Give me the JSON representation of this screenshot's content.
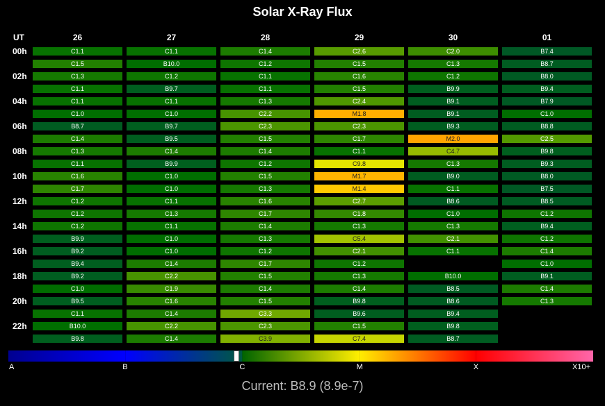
{
  "chart_data": {
    "type": "heatmap",
    "title": "Solar X-Ray Flux",
    "corner_label": "UT",
    "columns": [
      "26",
      "27",
      "28",
      "29",
      "30",
      "01"
    ],
    "row_labels": [
      "00h",
      "02h",
      "04h",
      "06h",
      "08h",
      "10h",
      "12h",
      "14h",
      "16h",
      "18h",
      "20h",
      "22h"
    ],
    "rows_per_day": 24,
    "cells": [
      [
        "C1.1",
        "C1.5",
        "C1.3",
        "C1.1",
        "C1.1",
        "C1.0",
        "B8.7",
        "C1.4",
        "C1.3",
        "C1.1",
        "C1.6",
        "C1.7",
        "C1.2",
        "C1.2",
        "C1.2",
        "B9.9",
        "B9.2",
        "B9.4",
        "B9.2",
        "C1.0",
        "B9.5",
        "C1.1",
        "B10.0",
        "B9.8"
      ],
      [
        "C1.1",
        "B10.0",
        "C1.2",
        "B9.7",
        "C1.1",
        "C1.0",
        "B9.7",
        "B9.5",
        "C1.4",
        "B9.9",
        "C1.0",
        "C1.0",
        "C1.1",
        "C1.3",
        "C1.1",
        "C1.0",
        "C1.0",
        "C1.4",
        "C2.2",
        "C1.9",
        "C1.6",
        "C1.4",
        "C2.2",
        "C1.4"
      ],
      [
        "C1.4",
        "C1.2",
        "C1.1",
        "C1.1",
        "C1.3",
        "C2.2",
        "C2.3",
        "C1.5",
        "C1.4",
        "C1.2",
        "C1.5",
        "C1.3",
        "C1.6",
        "C1.7",
        "C1.4",
        "C1.3",
        "C1.2",
        "C1.7",
        "C1.5",
        "C1.4",
        "C1.5",
        "C3.3",
        "C2.3",
        "C3.9"
      ],
      [
        "C2.6",
        "C1.5",
        "C1.6",
        "C1.5",
        "C2.4",
        "M1.8",
        "C2.3",
        "C1.7",
        "C1.1",
        "C9.8",
        "M1.7",
        "M1.4",
        "C2.7",
        "C1.8",
        "C1.3",
        "C5.4",
        "C2.1",
        "C1.2",
        "C1.3",
        "C1.4",
        "B9.8",
        "B9.6",
        "C1.5",
        "C7.4"
      ],
      [
        "C2.0",
        "C1.3",
        "C1.2",
        "B9.9",
        "B9.1",
        "B9.1",
        "B9.3",
        "M2.0",
        "C4.7",
        "C1.3",
        "B9.0",
        "C1.1",
        "B8.6",
        "C1.0",
        "C1.3",
        "C2.1",
        "C1.1",
        null,
        "B10.0",
        "B8.5",
        "B8.6",
        "B9.4",
        "B9.8",
        "B8.7"
      ],
      [
        "B7.4",
        "B8.7",
        "B8.0",
        "B9.4",
        "B7.9",
        "C1.0",
        "B8.8",
        "C2.5",
        "B9.8",
        "B9.3",
        "B8.0",
        "B7.5",
        "B8.5",
        "C1.2",
        "B9.4",
        "C1.2",
        "C1.4",
        "C1.0",
        "B9.1",
        "C1.4",
        "C1.3",
        null,
        null,
        null
      ]
    ],
    "scale_labels": [
      "A",
      "B",
      "C",
      "M",
      "X",
      "X10+"
    ],
    "current_value": "Current: B8.9 (8.9e-7)",
    "current_flux": 8.9e-07
  }
}
